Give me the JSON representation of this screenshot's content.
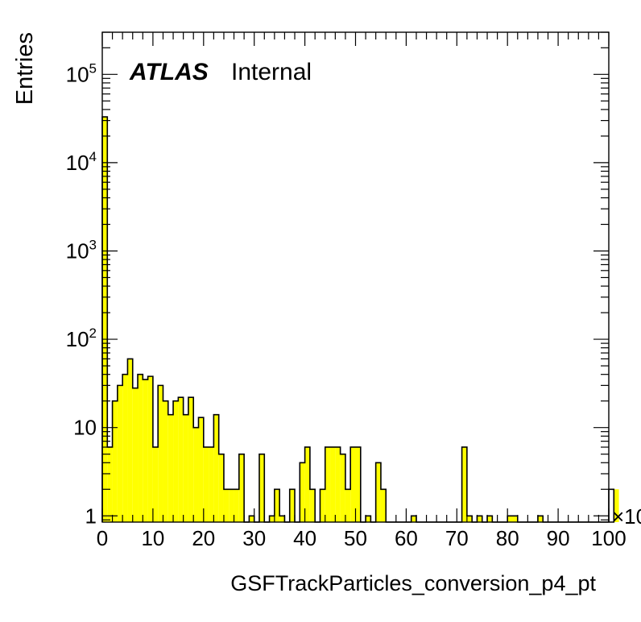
{
  "colors": {
    "fill": "#ffff00",
    "line": "#000000",
    "background": "#ffffff"
  },
  "label": {
    "experiment": "ATLAS",
    "status": "Internal"
  },
  "chart_data": {
    "type": "bar",
    "histogram": true,
    "xlabel": "GSFTrackParticles_conversion_p4_pt",
    "ylabel": "Entries",
    "x_multiplier_label": "×10",
    "xlim": [
      0,
      100
    ],
    "ylim": [
      0.85,
      300000
    ],
    "yscale": "log",
    "x_ticks": [
      "0",
      "10",
      "20",
      "30",
      "40",
      "50",
      "60",
      "70",
      "80",
      "90",
      "100"
    ],
    "y_ticks": [
      {
        "value": 1,
        "base": "1",
        "exp": ""
      },
      {
        "value": 10,
        "base": "10",
        "exp": ""
      },
      {
        "value": 100,
        "base": "10",
        "exp": "2"
      },
      {
        "value": 1000,
        "base": "10",
        "exp": "3"
      },
      {
        "value": 10000,
        "base": "10",
        "exp": "4"
      },
      {
        "value": 100000,
        "base": "10",
        "exp": "5"
      }
    ],
    "bin_width": 1,
    "x_start": 0,
    "values": [
      33000,
      6,
      20,
      30,
      40,
      60,
      28,
      40,
      35,
      38,
      6,
      30,
      20,
      14,
      20,
      22,
      14,
      22,
      10,
      13,
      6,
      6,
      14,
      5,
      2,
      2,
      2,
      5,
      0,
      1,
      0,
      5,
      0,
      1,
      2,
      1,
      0,
      2,
      0,
      4,
      6,
      2,
      0,
      2,
      6,
      6,
      6,
      5,
      2,
      6,
      6,
      0,
      1,
      0,
      4,
      2,
      0,
      0,
      0,
      0,
      0,
      1,
      0,
      0,
      0,
      0,
      0,
      0,
      0,
      0,
      0,
      6,
      1,
      0,
      1,
      0,
      1,
      0,
      0,
      0,
      1,
      1,
      0,
      0,
      0,
      0,
      1,
      0,
      0,
      0,
      0,
      0,
      0,
      0,
      0,
      0,
      0,
      0,
      0,
      0,
      0,
      2
    ]
  }
}
